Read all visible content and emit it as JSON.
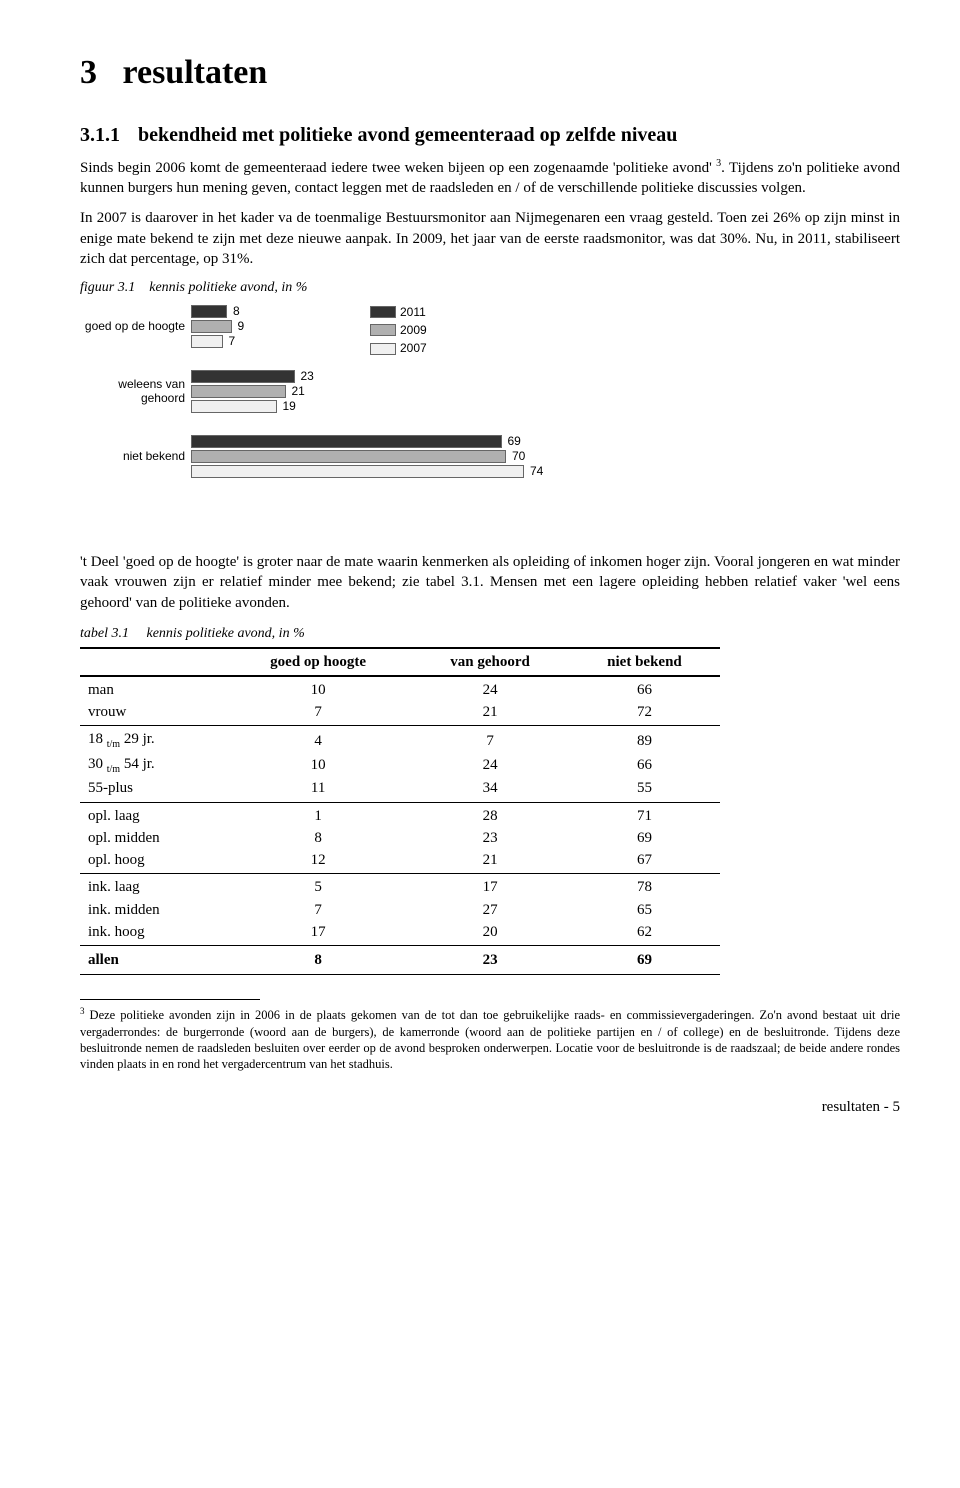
{
  "heading": {
    "number": "3",
    "title": "resultaten",
    "sub_number": "3.1.1",
    "sub_title": "bekendheid met politieke avond gemeenteraad op zelfde niveau"
  },
  "paragraphs": {
    "p1a": "Sinds begin 2006 komt de gemeenteraad iedere twee weken bijeen op een zogenaamde 'politieke avond' ",
    "p1_footref": "3",
    "p1b": ". Tijdens zo'n politieke avond kunnen burgers hun mening geven, contact leggen met de raadsleden en / of de verschillende politieke discussies volgen.",
    "p2": "In 2007 is daarover in het kader va de toenmalige Bestuursmonitor aan Nijmegenaren een vraag gesteld. Toen zei 26% op zijn minst in enige mate bekend te zijn met deze nieuwe aanpak. In 2009, het jaar van de eerste raadsmonitor, was dat 30%. Nu, in 2011, stabiliseert zich dat percentage, op 31%.",
    "p3": "'t Deel 'goed op de hoogte' is groter naar de mate waarin kenmerken als opleiding of inkomen hoger zijn. Vooral jongeren en wat minder vaak vrouwen zijn er relatief minder mee bekend; zie tabel 3.1. Mensen met een lagere opleiding hebben relatief vaker 'wel eens gehoord' van de politieke avonden."
  },
  "figure": {
    "caption_num": "figuur 3.1",
    "caption_text": "kennis politieke avond, in %",
    "legend": [
      {
        "label": "2011",
        "color": "#333333"
      },
      {
        "label": "2009",
        "color": "#b0b0b0"
      },
      {
        "label": "2007",
        "color": "#f0f0f0"
      }
    ],
    "categories": [
      {
        "label_line1": "goed op de hoogte",
        "label_line2": "",
        "values": [
          8,
          9,
          7
        ]
      },
      {
        "label_line1": "weleens van",
        "label_line2": "gehoord",
        "values": [
          23,
          21,
          19
        ]
      },
      {
        "label_line1": "niet bekend",
        "label_line2": "",
        "values": [
          69,
          70,
          74
        ]
      }
    ],
    "bar_scale": 4.5,
    "bar_colors": [
      "#333333",
      "#b0b0b0",
      "#f0f0f0"
    ]
  },
  "table": {
    "caption_num": "tabel 3.1",
    "caption_text": "kennis politieke avond, in %",
    "columns": [
      "",
      "goed op hoogte",
      "van gehoord",
      "niet bekend"
    ],
    "sections": [
      [
        {
          "label": "man",
          "values": [
            10,
            24,
            66
          ]
        },
        {
          "label": "vrouw",
          "values": [
            7,
            21,
            72
          ]
        }
      ],
      [
        {
          "label": "18 t/m 29 jr.",
          "tm": true,
          "values": [
            4,
            7,
            89
          ]
        },
        {
          "label": "30 t/m 54 jr.",
          "tm": true,
          "values": [
            10,
            24,
            66
          ]
        },
        {
          "label": "55-plus",
          "values": [
            11,
            34,
            55
          ]
        }
      ],
      [
        {
          "label": "opl. laag",
          "values": [
            1,
            28,
            71
          ]
        },
        {
          "label": "opl. midden",
          "values": [
            8,
            23,
            69
          ]
        },
        {
          "label": "opl. hoog",
          "values": [
            12,
            21,
            67
          ]
        }
      ],
      [
        {
          "label": "ink. laag",
          "values": [
            5,
            17,
            78
          ]
        },
        {
          "label": "ink. midden",
          "values": [
            7,
            27,
            65
          ]
        },
        {
          "label": "ink. hoog",
          "values": [
            17,
            20,
            62
          ]
        }
      ]
    ],
    "total": {
      "label": "allen",
      "values": [
        8,
        23,
        69
      ]
    }
  },
  "footnote": {
    "num": "3",
    "text": "Deze politieke avonden zijn in 2006 in de plaats gekomen van de tot dan toe gebruikelijke raads- en commissievergaderingen. Zo'n avond bestaat uit drie vergaderrondes: de burgerronde (woord aan de burgers), de kamerronde (woord aan de politieke partijen en / of college) en de besluitronde. Tijdens deze besluitronde nemen de raadsleden besluiten over eerder op de avond besproken onderwerpen. Locatie voor de besluitronde is de raadszaal; de beide andere rondes vinden plaats in en rond het vergadercentrum van het stadhuis."
  },
  "page_footer": "resultaten - 5"
}
